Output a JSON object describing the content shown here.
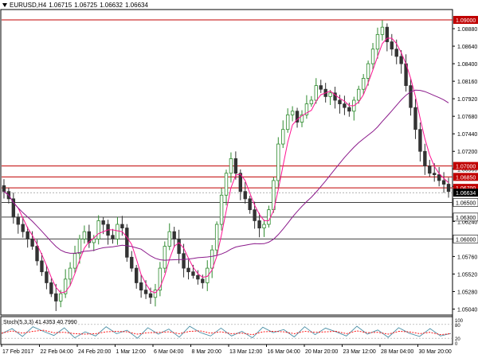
{
  "header": {
    "symbol_timeframe": "EURUSD,H4",
    "open": "1.06715",
    "high": "1.06725",
    "low": "1.06632",
    "close": "1.06634"
  },
  "colors": {
    "background": "#ffffff",
    "candle_up": "#2e8b2e",
    "candle_down": "#333333",
    "ma_fast": "#ff1493",
    "ma_slow": "#8b1a8b",
    "level_line": "#c00000",
    "level_line_dark": "#404040",
    "price_label_bg": "#c00000",
    "current_price_bg": "#000000",
    "stoch_main": "#4b8fa6",
    "stoch_signal": "#ff0000"
  },
  "chart_data": [
    {
      "type": "candlestick",
      "instrument": "EURUSD",
      "timeframe": "H4",
      "ylim": [
        1.0498,
        1.0912
      ],
      "y_ticks": [
        "1.08880",
        "1.08640",
        "1.08400",
        "1.08160",
        "1.07920",
        "1.07680",
        "1.07440",
        "1.07200",
        "1.06960",
        "1.06720",
        "1.06480",
        "1.06240",
        "1.06000",
        "1.05760",
        "1.05520",
        "1.05280",
        "1.05040"
      ],
      "x_tick_labels": [
        "17 Feb 2017",
        "22 Feb 04:00",
        "24 Feb 20:00",
        "1 Mar 12:00",
        "6 Mar 04:00",
        "8 Mar 20:00",
        "13 Mar 12:00",
        "16 Mar 04:00",
        "20 Mar 20:00",
        "23 Mar 12:00",
        "28 Mar 04:00",
        "30 Mar 20:00"
      ],
      "price_levels": [
        {
          "label": "1.09000",
          "value": 1.09,
          "style": "red"
        },
        {
          "label": "1.07000",
          "value": 1.07,
          "style": "red"
        },
        {
          "label": "1.06850",
          "value": 1.0685,
          "style": "red"
        },
        {
          "label": "1.06700",
          "value": 1.067,
          "style": "red"
        },
        {
          "label": "1.06500",
          "value": 1.065,
          "style": "dark"
        },
        {
          "label": "1.06300",
          "value": 1.063,
          "style": "dark"
        },
        {
          "label": "1.06000",
          "value": 1.06,
          "style": "dark"
        }
      ],
      "current_price": {
        "label": "1.06634",
        "value": 1.06634
      },
      "price_path": [
        1.0665,
        1.0655,
        1.063,
        1.062,
        1.061,
        1.06,
        1.059,
        1.057,
        1.0555,
        1.054,
        1.0525,
        1.0515,
        1.0525,
        1.0545,
        1.056,
        1.058,
        1.06,
        1.061,
        1.0595,
        1.06,
        1.0625,
        1.062,
        1.0605,
        1.06,
        1.062,
        1.0615,
        1.0575,
        1.056,
        1.054,
        1.053,
        1.0525,
        1.052,
        1.053,
        1.056,
        1.059,
        1.061,
        1.06,
        1.058,
        1.056,
        1.0555,
        1.055,
        1.0545,
        1.054,
        1.056,
        1.0585,
        1.062,
        1.066,
        1.069,
        1.071,
        1.069,
        1.0665,
        1.0655,
        1.064,
        1.0625,
        1.0615,
        1.062,
        1.064,
        1.068,
        1.073,
        1.075,
        1.077,
        1.0775,
        1.076,
        1.077,
        1.0785,
        1.079,
        1.081,
        1.0805,
        1.0795,
        1.08,
        1.079,
        1.0785,
        1.078,
        1.0775,
        1.079,
        1.0805,
        1.082,
        1.084,
        1.086,
        1.088,
        1.089,
        1.087,
        1.086,
        1.085,
        1.084,
        1.081,
        1.078,
        1.075,
        1.072,
        1.07,
        1.069,
        1.0688,
        1.068,
        1.0675,
        1.0665
      ],
      "ma_fast_label": "",
      "ma_slow_label": ""
    },
    {
      "type": "line",
      "indicator_label": "Stoch(5,3,3) 41.4353 40.7990",
      "ylim": [
        0,
        100
      ],
      "y_ticks": [
        "100",
        "80",
        "20",
        "0"
      ],
      "series": [
        {
          "values": [
            40,
            62,
            28,
            70,
            50,
            32,
            65,
            22,
            48,
            30,
            70,
            40,
            55,
            20,
            66,
            38,
            60,
            25,
            72,
            45,
            30,
            64,
            30,
            50,
            22,
            68,
            44,
            58,
            26,
            70,
            36,
            64,
            48,
            30,
            72,
            38,
            56,
            24,
            66,
            42,
            28,
            62,
            30,
            41
          ]
        },
        {
          "values": [
            42,
            52,
            42,
            50,
            55,
            44,
            46,
            40,
            38,
            40,
            48,
            50,
            48,
            38,
            44,
            45,
            48,
            40,
            50,
            52,
            42,
            48,
            40,
            42,
            36,
            48,
            50,
            48,
            40,
            50,
            46,
            48,
            50,
            40,
            52,
            44,
            46,
            38,
            50,
            48,
            40,
            46,
            36,
            40
          ]
        }
      ]
    }
  ]
}
